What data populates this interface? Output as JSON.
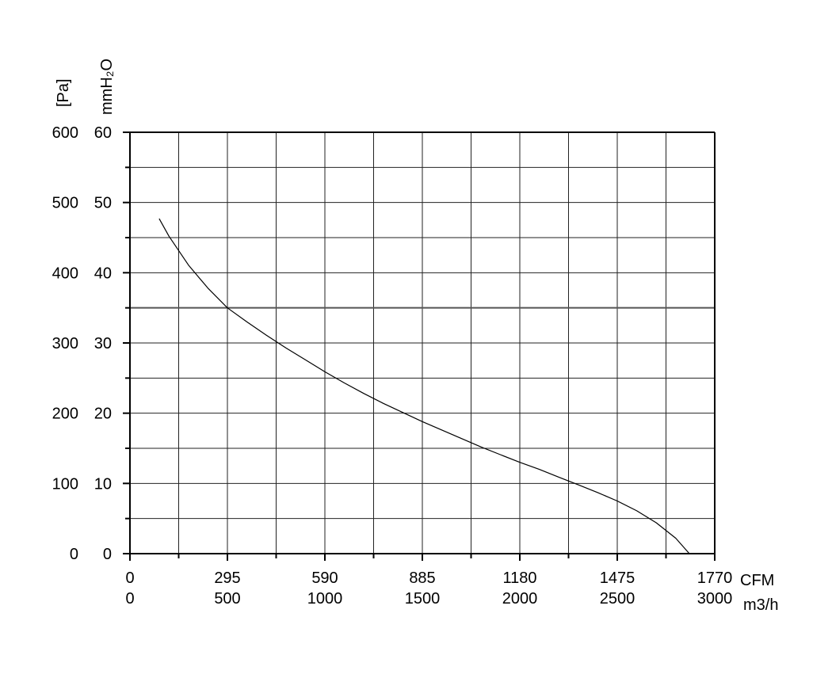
{
  "chart_data": {
    "type": "line",
    "title": "",
    "x_axis": {
      "unit_primary": "CFM",
      "unit_secondary": "m3/h",
      "range_m3h": [
        0,
        3000
      ],
      "ticks_cfm": [
        "0",
        "295",
        "590",
        "885",
        "1180",
        "1475",
        "1770"
      ],
      "ticks_m3h": [
        "0",
        "500",
        "1000",
        "1500",
        "2000",
        "2500",
        "3000"
      ],
      "major_tick_values_m3h": [
        0,
        500,
        1000,
        1500,
        2000,
        2500,
        3000
      ],
      "minor_tick_values_m3h": [
        250,
        750,
        1250,
        1750,
        2250,
        2750
      ]
    },
    "y_axis": {
      "unit_outer": "[Pa]",
      "unit_inner": "mmH₂O",
      "range_pa": [
        0,
        600
      ],
      "ticks_pa": [
        "0",
        "100",
        "200",
        "300",
        "400",
        "500",
        "600"
      ],
      "ticks_mmh2o": [
        "0",
        "10",
        "20",
        "30",
        "40",
        "50",
        "60"
      ],
      "major_tick_values_pa": [
        0,
        100,
        200,
        300,
        400,
        500,
        600
      ],
      "minor_tick_values_pa": [
        50,
        150,
        250,
        350,
        450,
        550
      ]
    },
    "grid": true,
    "reference_line_pa": 350,
    "series": [
      {
        "x_m3h": [
          150,
          200,
          300,
          400,
          500,
          600,
          700,
          800,
          900,
          1000,
          1100,
          1200,
          1300,
          1400,
          1500,
          1600,
          1700,
          1800,
          1900,
          2000,
          2100,
          2200,
          2300,
          2400,
          2500,
          2600,
          2700,
          2800,
          2870
        ],
        "y_pa": [
          477,
          452,
          411,
          378,
          350,
          330,
          311,
          293,
          276,
          259,
          243,
          228,
          214,
          201,
          188,
          176,
          164,
          152,
          141,
          130,
          120,
          109,
          98,
          87,
          75,
          61,
          44,
          22,
          0
        ],
        "color": "#000000"
      }
    ]
  }
}
